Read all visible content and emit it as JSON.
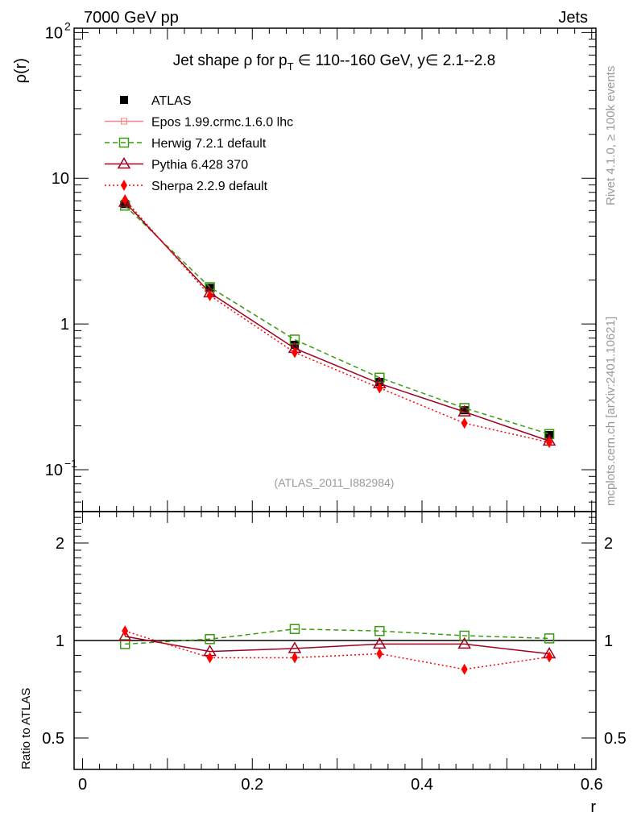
{
  "header": {
    "left": "7000 GeV pp",
    "right": "Jets"
  },
  "side_labels": {
    "rivet": "Rivet 4.1.0, ≥ 100k events",
    "mcplots": "mcplots.cern.ch [arXiv:2401.10621]"
  },
  "chart_data": {
    "type": "line",
    "title": "Jet shape ρ for p_T ∈ 110--160 GeV, y∈ 2.1--2.8",
    "title_parts": {
      "pre": "Jet shape ρ for p",
      "sub": "T",
      "post": " ∈ 110--160 GeV, y∈ 2.1--2.8"
    },
    "analysis_id": "(ATLAS_2011_I882984)",
    "xlabel": "r",
    "ylabel": "ρ(r)",
    "ratio_ylabel": "Ratio to ATLAS",
    "xlim": [
      -0.01,
      0.605
    ],
    "ylim": [
      0.0516,
      107
    ],
    "yscale": "log",
    "ratio_ylim": [
      0.4,
      2.5
    ],
    "ratio_yscale": "log",
    "x_ticks": [
      "0",
      "0.2",
      "0.4",
      "0.6"
    ],
    "x_tick_values": [
      0,
      0.2,
      0.4,
      0.6
    ],
    "y_ticks": [
      {
        "v": 100,
        "base": "10",
        "exp": "2"
      },
      {
        "v": 10,
        "base": "10",
        "exp": ""
      },
      {
        "v": 1,
        "base": "1",
        "exp": ""
      },
      {
        "v": 0.1,
        "base": "10",
        "exp": "−1"
      }
    ],
    "ratio_ticks": [
      {
        "v": 2,
        "label": "2"
      },
      {
        "v": 1,
        "label": "1"
      },
      {
        "v": 0.5,
        "label": "0.5"
      }
    ],
    "x": [
      0.05,
      0.15,
      0.25,
      0.35,
      0.45,
      0.55
    ],
    "legend_position": "top-left",
    "series": [
      {
        "name": "ATLAS",
        "color": "#000000",
        "marker": "square-filled",
        "dash": "",
        "values": [
          6.65,
          1.77,
          0.72,
          0.4,
          0.256,
          0.173
        ]
      },
      {
        "name": "Epos 1.99.crmc.1.6.0 lhc",
        "color": "#ff8080",
        "marker": "cross-box",
        "dash": "",
        "ratio": []
      },
      {
        "name": "Herwig 7.2.1 default",
        "color": "#3a9a10",
        "marker": "square-open",
        "dash": "6,4",
        "ratio": [
          0.975,
          1.01,
          1.085,
          1.07,
          1.035,
          1.015
        ]
      },
      {
        "name": "Pythia 6.428 370",
        "color": "#a00020",
        "marker": "triangle-open",
        "dash": "",
        "ratio": [
          1.03,
          0.925,
          0.945,
          0.975,
          0.975,
          0.91
        ]
      },
      {
        "name": "Sherpa 2.2.9 default",
        "color": "#ff0000",
        "marker": "diamond-filled",
        "dash": "2,3",
        "ratio": [
          1.07,
          0.885,
          0.885,
          0.91,
          0.815,
          0.89
        ]
      }
    ]
  }
}
